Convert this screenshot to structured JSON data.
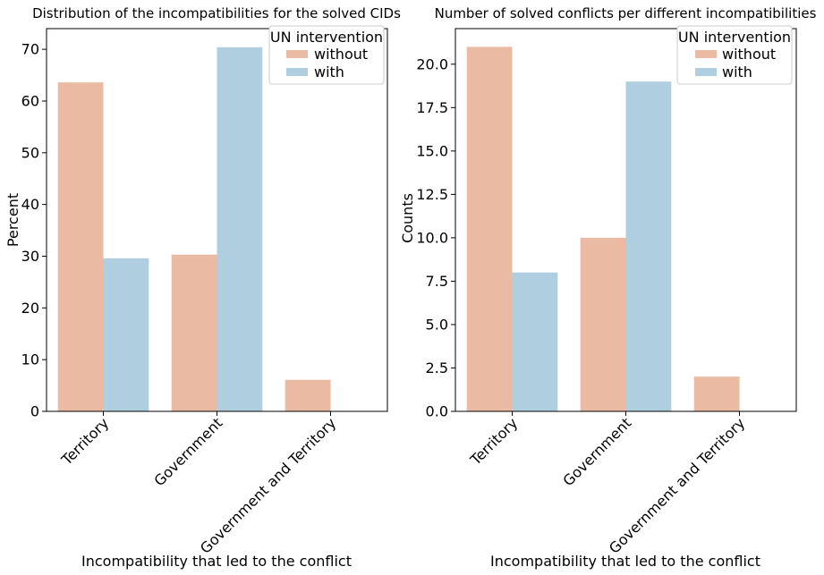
{
  "chart_data": [
    {
      "type": "bar",
      "title": "Distribution of the incompatibilities for the solved CIDs",
      "xlabel": "Incompatibility that led to the conflict",
      "ylabel": "Percent",
      "categories": [
        "Territory",
        "Government",
        "Government and Territory"
      ],
      "series": [
        {
          "name": "without",
          "values": [
            63.6,
            30.3,
            6.1
          ]
        },
        {
          "name": "with",
          "values": [
            29.6,
            70.4,
            0
          ]
        }
      ],
      "ylim": [
        0,
        74
      ],
      "yticks": [
        0,
        10,
        20,
        30,
        40,
        50,
        60,
        70
      ],
      "ytick_labels": [
        "0",
        "10",
        "20",
        "30",
        "40",
        "50",
        "60",
        "70"
      ],
      "legend": {
        "title": "UN intervention",
        "placement": "top-right"
      },
      "grid": false
    },
    {
      "type": "bar",
      "title": "Number of solved conflicts per different incompatibilities",
      "xlabel": "Incompatibility that led to the conflict",
      "ylabel": "Counts",
      "categories": [
        "Territory",
        "Government",
        "Government and Territory"
      ],
      "series": [
        {
          "name": "without",
          "values": [
            21,
            10,
            2
          ]
        },
        {
          "name": "with",
          "values": [
            8,
            19,
            0
          ]
        }
      ],
      "ylim": [
        0,
        22.05
      ],
      "yticks": [
        0,
        2.5,
        5,
        7.5,
        10,
        12.5,
        15,
        17.5,
        20
      ],
      "ytick_labels": [
        "0.0",
        "2.5",
        "5.0",
        "7.5",
        "10.0",
        "12.5",
        "15.0",
        "17.5",
        "20.0"
      ],
      "legend": {
        "title": "UN intervention",
        "placement": "top-right"
      },
      "grid": false
    }
  ],
  "colors": {
    "without": "#ebbaa3",
    "with": "#afcfe1"
  }
}
